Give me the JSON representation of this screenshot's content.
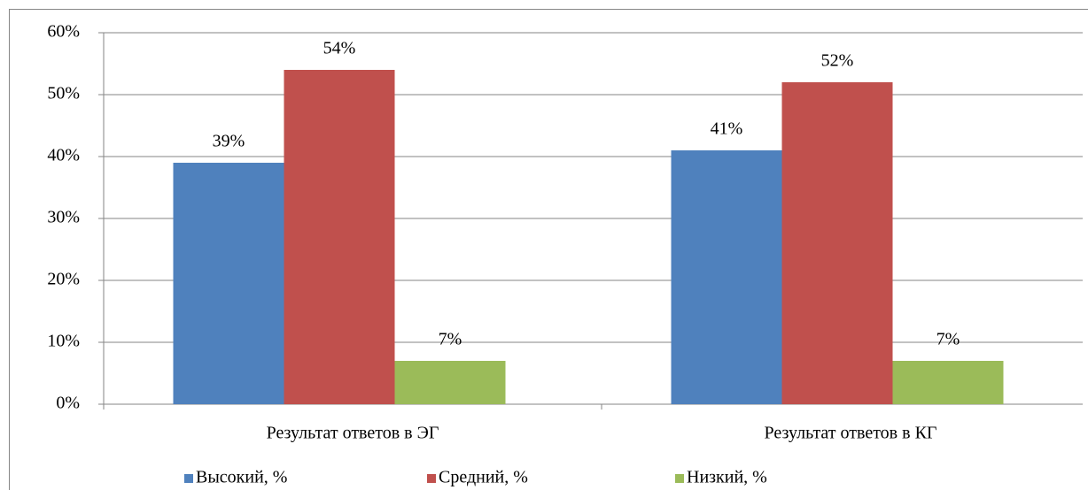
{
  "chart_data": {
    "type": "bar",
    "categories": [
      "Результат ответов в ЭГ",
      "Результат ответов в КГ"
    ],
    "series": [
      {
        "name": "Высокий, %",
        "color": "#4f81bd",
        "values": [
          39,
          41
        ],
        "value_labels": [
          "39%",
          "41%"
        ]
      },
      {
        "name": "Средний, %",
        "color": "#c0504d",
        "values": [
          54,
          52
        ],
        "value_labels": [
          "54%",
          "52%"
        ]
      },
      {
        "name": "Низкий, %",
        "color": "#9bbb59",
        "values": [
          7,
          7
        ],
        "value_labels": [
          "7%",
          "7%"
        ]
      }
    ],
    "ylim": [
      0,
      60
    ],
    "yticks": [
      {
        "value": 0,
        "label": "0%"
      },
      {
        "value": 10,
        "label": "10%"
      },
      {
        "value": 20,
        "label": "20%"
      },
      {
        "value": 30,
        "label": "30%"
      },
      {
        "value": 40,
        "label": "40%"
      },
      {
        "value": 50,
        "label": "50%"
      },
      {
        "value": 60,
        "label": "60%"
      }
    ],
    "grid": true,
    "legend": "bottom"
  }
}
